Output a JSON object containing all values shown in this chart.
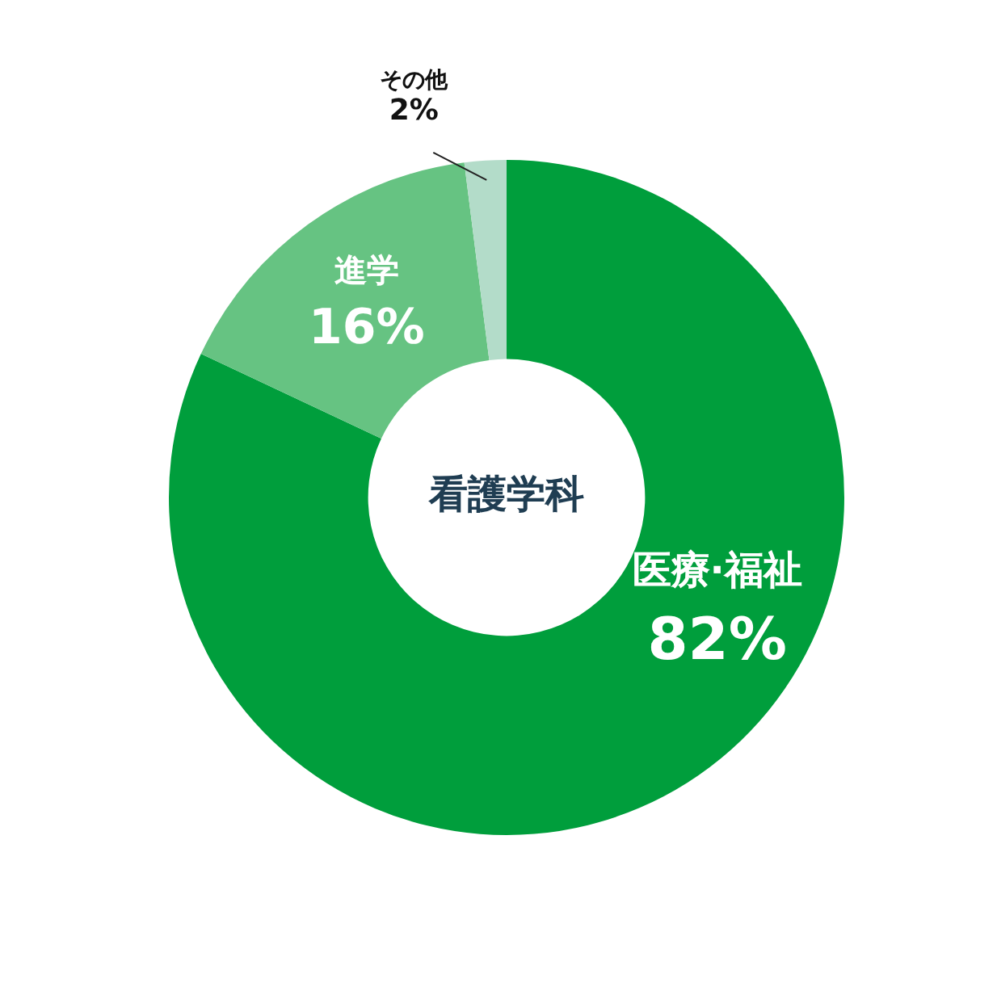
{
  "chart_data": {
    "type": "donut",
    "title": "看護学科",
    "categories": [
      "医療·福祉",
      "進学",
      "その他"
    ],
    "values": [
      82,
      16,
      2
    ],
    "value_labels": [
      "82%",
      "16%",
      "2%"
    ],
    "colors": [
      "#009e3c",
      "#66c382",
      "#b3dcc9"
    ],
    "legend": false
  }
}
